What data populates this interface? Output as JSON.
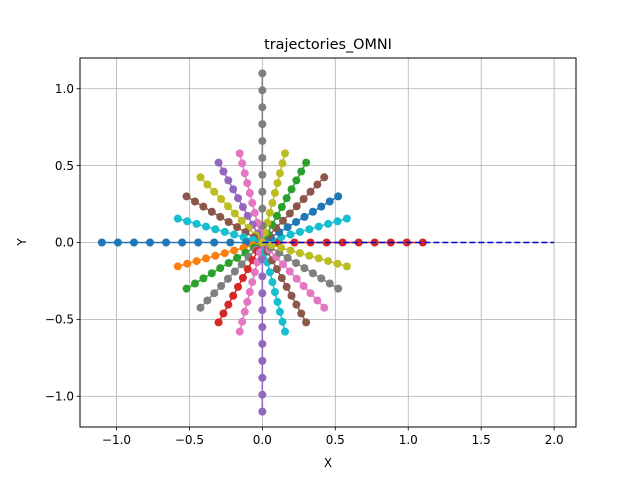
{
  "chart_data": {
    "type": "scatter",
    "title": "trajectories_OMNI",
    "xlabel": "X",
    "ylabel": "Y",
    "xlim": [
      -1.25,
      2.15
    ],
    "ylim": [
      -1.2,
      1.2
    ],
    "xticks": [
      -1.0,
      -0.5,
      0.0,
      0.5,
      1.0,
      1.5,
      2.0
    ],
    "xtick_labels": [
      "−1.0",
      "−0.5",
      "0.0",
      "0.5",
      "1.0",
      "1.5",
      "2.0"
    ],
    "yticks": [
      -1.0,
      -0.5,
      0.0,
      0.5,
      1.0
    ],
    "ytick_labels": [
      "−1.0",
      "−0.5",
      "0.0",
      "0.5",
      "1.0"
    ],
    "grid": true,
    "legend": false,
    "colors": [
      "#1f77b4",
      "#ff7f0e",
      "#2ca02c",
      "#d62728",
      "#9467bd",
      "#8c564b",
      "#e377c2",
      "#7f7f7f",
      "#bcbd22",
      "#17becf"
    ],
    "reference_line": {
      "x": [
        0.0,
        2.0
      ],
      "y": [
        0.0,
        0.0
      ],
      "color": "#0000cc",
      "style": "dashed"
    },
    "radial_series": [
      {
        "angle_deg": 0,
        "length": 1.1,
        "points": 11,
        "color": "#d62728"
      },
      {
        "angle_deg": 15,
        "length": 0.6,
        "points": 10,
        "color": "#17becf"
      },
      {
        "angle_deg": 30,
        "length": 0.6,
        "points": 10,
        "color": "#1f77b4"
      },
      {
        "angle_deg": 45,
        "length": 0.6,
        "points": 10,
        "color": "#8c564b"
      },
      {
        "angle_deg": 60,
        "length": 0.6,
        "points": 10,
        "color": "#2ca02c"
      },
      {
        "angle_deg": 75,
        "length": 0.6,
        "points": 10,
        "color": "#bcbd22"
      },
      {
        "angle_deg": 90,
        "length": 1.1,
        "points": 11,
        "color": "#7f7f7f"
      },
      {
        "angle_deg": 105,
        "length": 0.6,
        "points": 10,
        "color": "#e377c2"
      },
      {
        "angle_deg": 120,
        "length": 0.6,
        "points": 10,
        "color": "#9467bd"
      },
      {
        "angle_deg": 135,
        "length": 0.6,
        "points": 10,
        "color": "#bcbd22"
      },
      {
        "angle_deg": 150,
        "length": 0.6,
        "points": 10,
        "color": "#8c564b"
      },
      {
        "angle_deg": 165,
        "length": 0.6,
        "points": 10,
        "color": "#17becf"
      },
      {
        "angle_deg": 180,
        "length": 1.1,
        "points": 11,
        "color": "#1f77b4"
      },
      {
        "angle_deg": 195,
        "length": 0.6,
        "points": 10,
        "color": "#ff7f0e"
      },
      {
        "angle_deg": 210,
        "length": 0.6,
        "points": 10,
        "color": "#2ca02c"
      },
      {
        "angle_deg": 225,
        "length": 0.6,
        "points": 10,
        "color": "#7f7f7f"
      },
      {
        "angle_deg": 240,
        "length": 0.6,
        "points": 10,
        "color": "#d62728"
      },
      {
        "angle_deg": 255,
        "length": 0.6,
        "points": 10,
        "color": "#e377c2"
      },
      {
        "angle_deg": 270,
        "length": 1.1,
        "points": 11,
        "color": "#9467bd"
      },
      {
        "angle_deg": 285,
        "length": 0.6,
        "points": 10,
        "color": "#17becf"
      },
      {
        "angle_deg": 300,
        "length": 0.6,
        "points": 10,
        "color": "#8c564b"
      },
      {
        "angle_deg": 315,
        "length": 0.6,
        "points": 10,
        "color": "#e377c2"
      },
      {
        "angle_deg": 330,
        "length": 0.6,
        "points": 10,
        "color": "#7f7f7f"
      },
      {
        "angle_deg": 345,
        "length": 0.6,
        "points": 10,
        "color": "#bcbd22"
      }
    ]
  }
}
